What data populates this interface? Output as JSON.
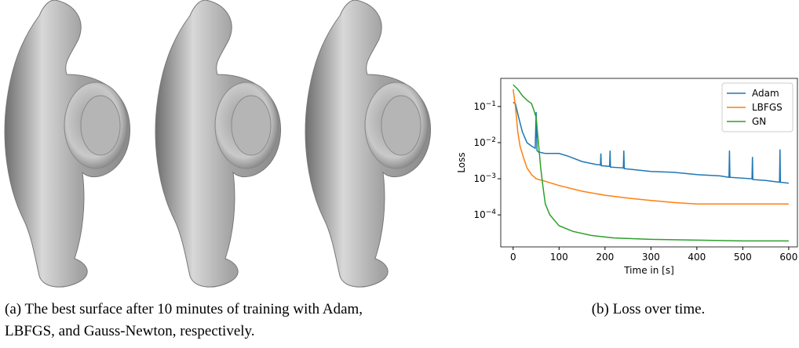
{
  "figure": {
    "caption_a": [
      "(a) The best surface after 10 minutes of training with Adam,",
      "LBFGS, and Gauss-Newton, respectively."
    ],
    "caption_b": "(b) Loss over time."
  },
  "chart_data": {
    "type": "line",
    "xlabel": "Time in [s]",
    "ylabel": "Loss",
    "log_y": true,
    "legend": "upper right",
    "xlim": [
      -27,
      619
    ],
    "xticks": [
      0,
      100,
      200,
      300,
      400,
      500,
      600
    ],
    "ylim": [
      1.3e-05,
      0.6
    ],
    "yticks": [
      {
        "value": 0.1,
        "label": "10^−1"
      },
      {
        "value": 0.01,
        "label": "10^−2"
      },
      {
        "value": 0.001,
        "label": "10^−3"
      },
      {
        "value": 0.0001,
        "label": "10^−4"
      }
    ],
    "series": [
      {
        "name": "Adam",
        "color": "#1f77b4",
        "x": [
          0,
          5,
          12,
          20,
          30,
          40,
          48,
          50,
          52,
          55,
          70,
          100,
          120,
          150,
          180,
          190,
          191,
          192,
          210,
          211,
          212,
          240,
          241,
          242,
          260,
          300,
          350,
          400,
          450,
          470,
          471,
          472,
          520,
          521,
          522,
          550,
          580,
          581,
          582,
          600
        ],
        "values": [
          0.13,
          0.12,
          0.05,
          0.02,
          0.01,
          0.008,
          0.007,
          0.07,
          0.006,
          0.0055,
          0.005,
          0.005,
          0.0042,
          0.003,
          0.0025,
          0.0024,
          0.005,
          0.0023,
          0.0022,
          0.006,
          0.0021,
          0.002,
          0.006,
          0.0019,
          0.0018,
          0.0016,
          0.0015,
          0.0013,
          0.0012,
          0.0011,
          0.006,
          0.0011,
          0.001,
          0.004,
          0.00095,
          0.0009,
          0.0008,
          0.0065,
          0.0008,
          0.00075
        ]
      },
      {
        "name": "LBFGS",
        "color": "#ff7f0e",
        "x": [
          0,
          5,
          10,
          15,
          22,
          30,
          40,
          50,
          70,
          100,
          150,
          200,
          250,
          300,
          350,
          400,
          450,
          500,
          550,
          600
        ],
        "values": [
          0.3,
          0.1,
          0.02,
          0.008,
          0.004,
          0.002,
          0.0013,
          0.001,
          0.00085,
          0.00065,
          0.00045,
          0.00035,
          0.00029,
          0.00025,
          0.00022,
          0.0002,
          0.0002,
          0.0002,
          0.0002,
          0.0002
        ]
      },
      {
        "name": "GN",
        "color": "#2ca02c",
        "x": [
          0,
          10,
          20,
          30,
          40,
          45,
          50,
          55,
          60,
          65,
          70,
          80,
          100,
          130,
          170,
          220,
          300,
          400,
          500,
          600
        ],
        "values": [
          0.4,
          0.3,
          0.2,
          0.15,
          0.12,
          0.08,
          0.05,
          0.01,
          0.002,
          0.0006,
          0.0002,
          0.0001,
          5e-05,
          3.5e-05,
          2.7e-05,
          2.3e-05,
          2.1e-05,
          2e-05,
          1.9e-05,
          1.9e-05
        ]
      }
    ]
  }
}
